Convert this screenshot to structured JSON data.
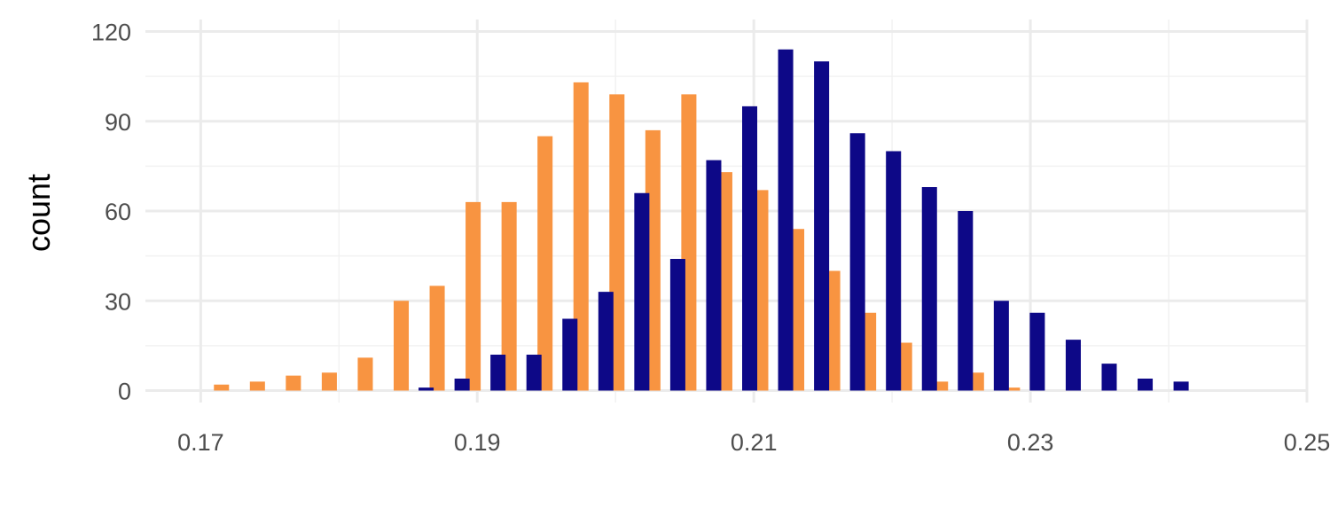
{
  "chart_data": {
    "type": "bar",
    "title": "",
    "xlabel": "",
    "ylabel": "count",
    "xlim": [
      0.166,
      0.25
    ],
    "ylim": [
      -4,
      124
    ],
    "x_ticks": [
      0.17,
      0.19,
      0.21,
      0.23,
      0.25
    ],
    "x_tick_labels": [
      "0.17",
      "0.19",
      "0.21",
      "0.23",
      "0.25"
    ],
    "y_ticks": [
      0,
      30,
      60,
      90,
      120
    ],
    "y_tick_labels": [
      "0",
      "30",
      "60",
      "90",
      "120"
    ],
    "grid": true,
    "legend": "none",
    "bin_width": 0.0026,
    "series": [
      {
        "color": "#F89441",
        "x": [
          0.1715,
          0.1741,
          0.1767,
          0.1793,
          0.1819,
          0.1845,
          0.1871,
          0.1897,
          0.1923,
          0.1949,
          0.1975,
          0.2001,
          0.2027,
          0.2053,
          0.2079,
          0.2105,
          0.2131,
          0.2157,
          0.2183,
          0.2209,
          0.2235,
          0.2261,
          0.2287
        ],
        "values": [
          2,
          3,
          5,
          6,
          11,
          30,
          35,
          63,
          63,
          85,
          103,
          99,
          87,
          99,
          73,
          67,
          54,
          40,
          26,
          16,
          3,
          6,
          1
        ]
      },
      {
        "color": "#0D0887",
        "x": [
          0.1863,
          0.1889,
          0.1915,
          0.1941,
          0.1967,
          0.1993,
          0.2019,
          0.2045,
          0.2071,
          0.2097,
          0.2123,
          0.2149,
          0.2175,
          0.2201,
          0.2227,
          0.2253,
          0.2279,
          0.2305,
          0.2331,
          0.2357,
          0.2383,
          0.2409
        ],
        "values": [
          1,
          4,
          12,
          12,
          24,
          33,
          66,
          44,
          77,
          95,
          114,
          110,
          86,
          80,
          68,
          60,
          30,
          26,
          17,
          9,
          4,
          3
        ]
      }
    ]
  }
}
